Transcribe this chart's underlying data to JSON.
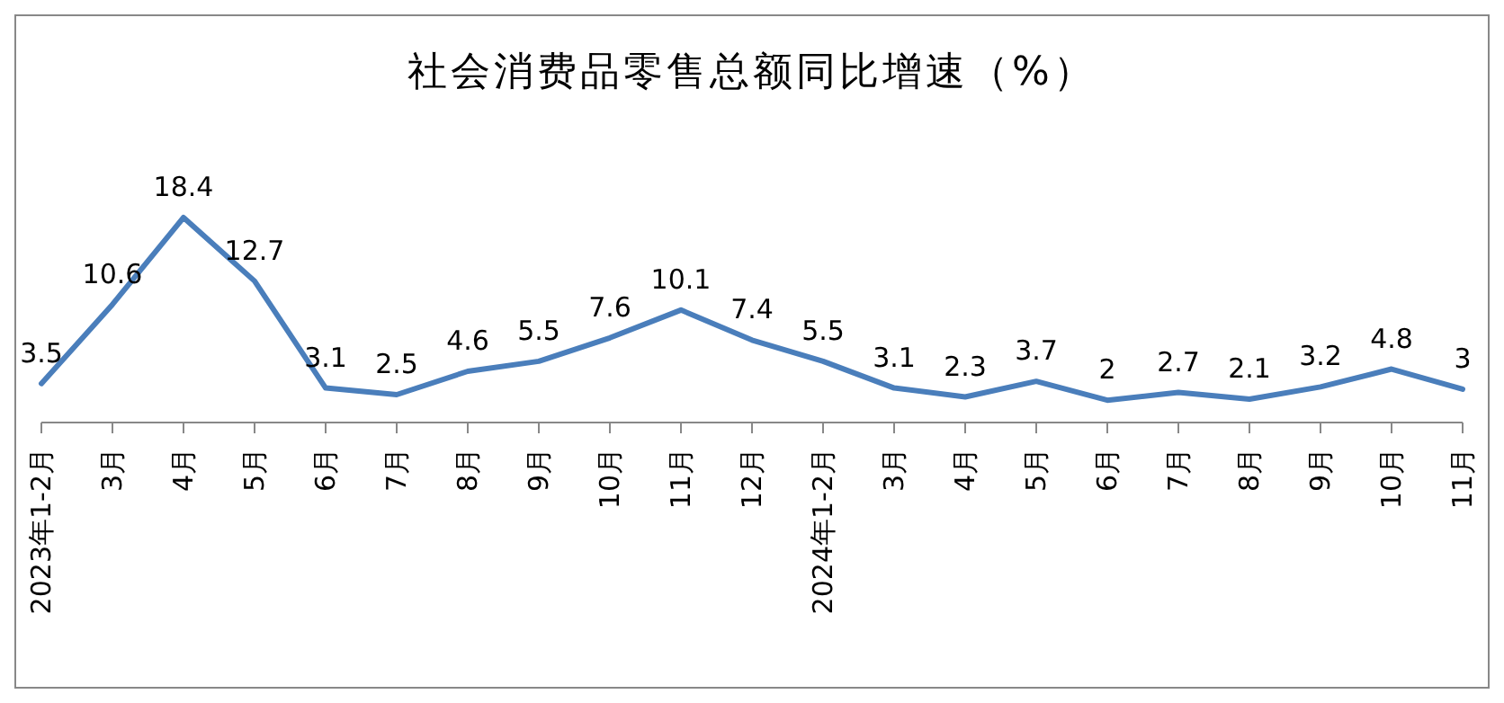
{
  "chart_data": {
    "type": "line",
    "title": "社会消费品零售总额同比增速（%）",
    "categories": [
      "2023年1-2月",
      "3月",
      "4月",
      "5月",
      "6月",
      "7月",
      "8月",
      "9月",
      "10月",
      "11月",
      "12月",
      "2024年1-2月",
      "3月",
      "4月",
      "5月",
      "6月",
      "7月",
      "8月",
      "9月",
      "10月",
      "11月"
    ],
    "series": [
      {
        "color": "#4a7ebb",
        "values": [
          3.5,
          10.6,
          18.4,
          12.7,
          3.1,
          2.5,
          4.6,
          5.5,
          7.6,
          10.1,
          7.4,
          5.5,
          3.1,
          2.3,
          3.7,
          2,
          2.7,
          2.1,
          3.2,
          4.8,
          3
        ]
      }
    ],
    "data_labels": true,
    "marker": "none",
    "line_style": "solid"
  }
}
